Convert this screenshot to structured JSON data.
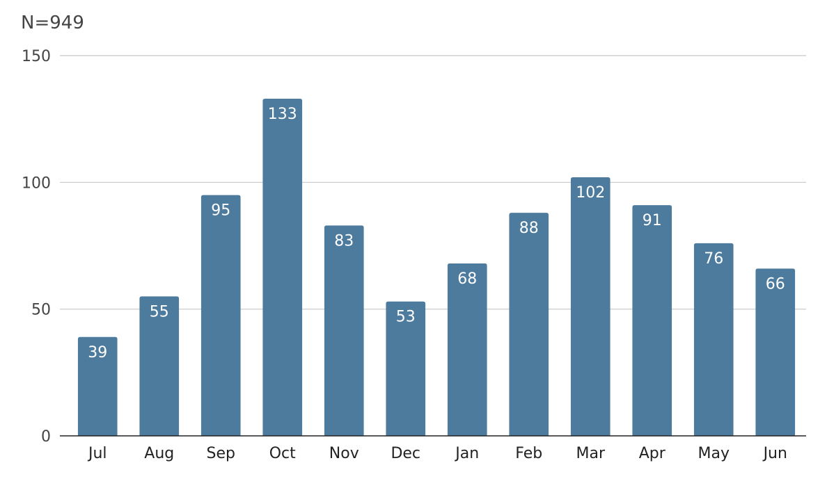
{
  "chart_data": {
    "type": "bar",
    "annotation": "N=949",
    "categories": [
      "Jul",
      "Aug",
      "Sep",
      "Oct",
      "Nov",
      "Dec",
      "Jan",
      "Feb",
      "Mar",
      "Apr",
      "May",
      "Jun"
    ],
    "values": [
      39,
      55,
      95,
      133,
      83,
      53,
      68,
      88,
      102,
      91,
      76,
      66
    ],
    "ylim": [
      0,
      150
    ],
    "yticks": [
      0,
      50,
      100,
      150
    ],
    "grid": true,
    "bar_color": "#4d7b9e",
    "data_labels": true
  }
}
